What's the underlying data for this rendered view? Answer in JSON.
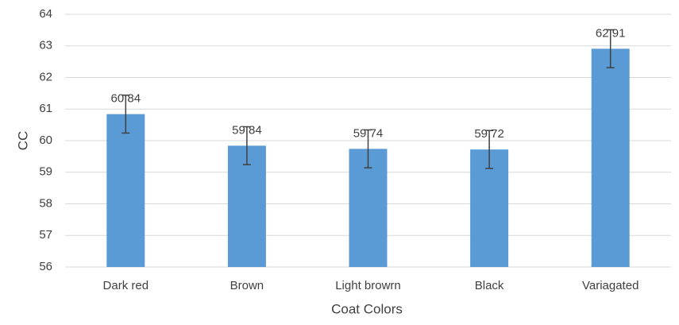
{
  "chart_data": {
    "type": "bar",
    "x_label": "Coat Colors",
    "y_label": "CC",
    "categories": [
      "Dark red",
      "Brown",
      "Light browrn",
      "Black",
      "Variagated"
    ],
    "values": [
      60.84,
      59.84,
      59.74,
      59.72,
      62.91
    ],
    "errors": [
      0.6,
      0.6,
      0.6,
      0.6,
      0.6
    ],
    "color": "#5b9bd5",
    "error_color": "#404040",
    "ylim": [
      56,
      64
    ],
    "yticks": [
      56,
      57,
      58,
      59,
      60,
      61,
      62,
      63,
      64
    ],
    "grid": true
  }
}
